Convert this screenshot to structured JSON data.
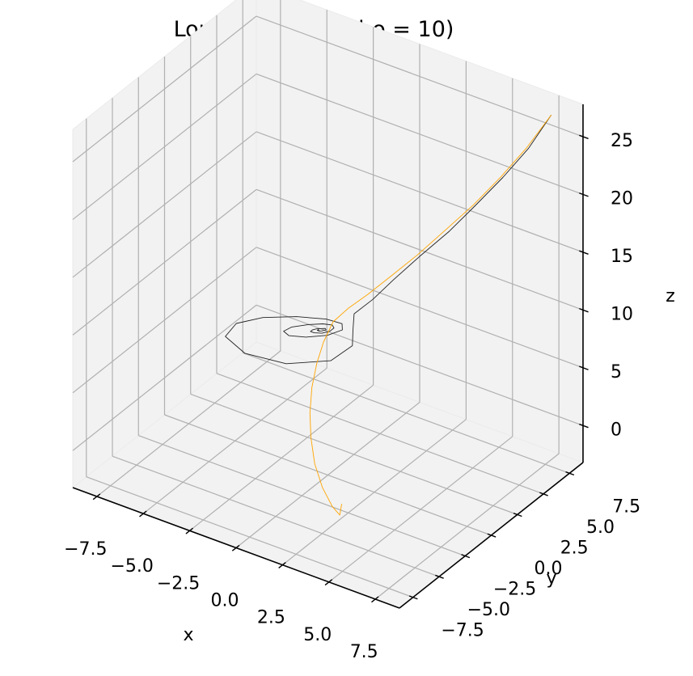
{
  "chart_data": {
    "type": "line",
    "projection": "3d",
    "title": "Lorenz System (rho = 10)",
    "xlabel": "x",
    "ylabel": "y",
    "zlabel": "z",
    "xlim": [
      -8.8,
      8.8
    ],
    "ylim": [
      -8.8,
      8.8
    ],
    "zlim": [
      -3.2,
      27.8
    ],
    "x_ticks": [
      -7.5,
      -5.0,
      -2.5,
      0.0,
      2.5,
      5.0,
      7.5
    ],
    "y_ticks": [
      -7.5,
      -5.0,
      -2.5,
      0.0,
      2.5,
      5.0,
      7.5
    ],
    "z_ticks": [
      0,
      5,
      10,
      15,
      20,
      25
    ],
    "x_tick_labels": [
      "−7.5",
      "−5.0",
      "−2.5",
      "0.0",
      "2.5",
      "5.0",
      "7.5"
    ],
    "y_tick_labels": [
      "−7.5",
      "−5.0",
      "−2.5",
      "0.0",
      "2.5",
      "5.0",
      "7.5"
    ],
    "z_tick_labels": [
      "0",
      "5",
      "10",
      "15",
      "20",
      "25"
    ],
    "grid": true,
    "pane_color": "#f2f2f2",
    "grid_color": "#b0b0b0",
    "series": [
      {
        "color": "#222222",
        "linewidth": 0.9,
        "x": [
          7.7,
          6.7,
          5.6,
          4.5,
          3.5,
          2.4,
          1.5,
          0.9,
          0.4,
          0.9,
          1.6,
          1.5,
          0.0,
          -2.0,
          -3.5,
          -3.7,
          -3.0,
          -1.8,
          -0.6,
          0.2,
          0.5,
          0.2,
          -0.5,
          -1.2,
          -1.6,
          -1.5,
          -1.0,
          -0.5,
          -0.1,
          0.1,
          0.1,
          -0.1,
          -0.4,
          -0.6,
          -0.6,
          -0.5,
          -0.3,
          -0.2,
          -0.1,
          -0.2,
          -0.3,
          -0.4,
          -0.4,
          -0.3
        ],
        "y": [
          7.7,
          7.3,
          6.8,
          6.1,
          5.4,
          4.5,
          3.6,
          2.7,
          1.8,
          0.8,
          -0.5,
          -2.4,
          -4.0,
          -4.4,
          -3.6,
          -2.2,
          -0.9,
          0.2,
          0.9,
          1.0,
          0.5,
          -0.4,
          -1.2,
          -1.6,
          -1.4,
          -0.8,
          -0.1,
          0.4,
          0.6,
          0.4,
          0.0,
          -0.4,
          -0.6,
          -0.6,
          -0.4,
          -0.2,
          0.0,
          0.1,
          0.0,
          -0.2,
          -0.3,
          -0.3,
          -0.2,
          -0.3
        ],
        "z": [
          27.0,
          23.8,
          21.0,
          18.4,
          16.1,
          13.9,
          12.0,
          10.6,
          9.7,
          9.3,
          9.3,
          9.3,
          9.3,
          9.3,
          9.3,
          9.3,
          9.3,
          9.3,
          9.3,
          9.3,
          9.3,
          9.3,
          9.3,
          9.3,
          9.3,
          9.3,
          9.3,
          9.3,
          9.3,
          9.3,
          9.3,
          9.3,
          9.3,
          9.3,
          9.3,
          9.3,
          9.3,
          9.3,
          9.3,
          9.3,
          9.3,
          9.3,
          9.3,
          9.3
        ]
      },
      {
        "color": "#ffa500",
        "linewidth": 0.9,
        "x": [
          7.7,
          6.6,
          5.5,
          4.4,
          3.3,
          2.3,
          1.4,
          0.7,
          0.2,
          0.0,
          0.1,
          0.3,
          0.6,
          1.0,
          1.5,
          2.1,
          2.8,
          3.5,
          3.9,
          4.0
        ],
        "y": [
          7.7,
          7.3,
          6.8,
          6.1,
          5.4,
          4.5,
          3.6,
          2.6,
          1.6,
          0.5,
          -0.6,
          -1.6,
          -2.6,
          -3.5,
          -4.3,
          -5.0,
          -5.5,
          -5.8,
          -5.8,
          -5.8
        ],
        "z": [
          27.0,
          23.8,
          21.0,
          18.4,
          16.1,
          14.0,
          12.3,
          11.0,
          10.2,
          9.7,
          8.8,
          7.8,
          6.6,
          5.3,
          4.0,
          2.6,
          1.3,
          0.3,
          -0.2,
          0.8
        ]
      }
    ]
  }
}
